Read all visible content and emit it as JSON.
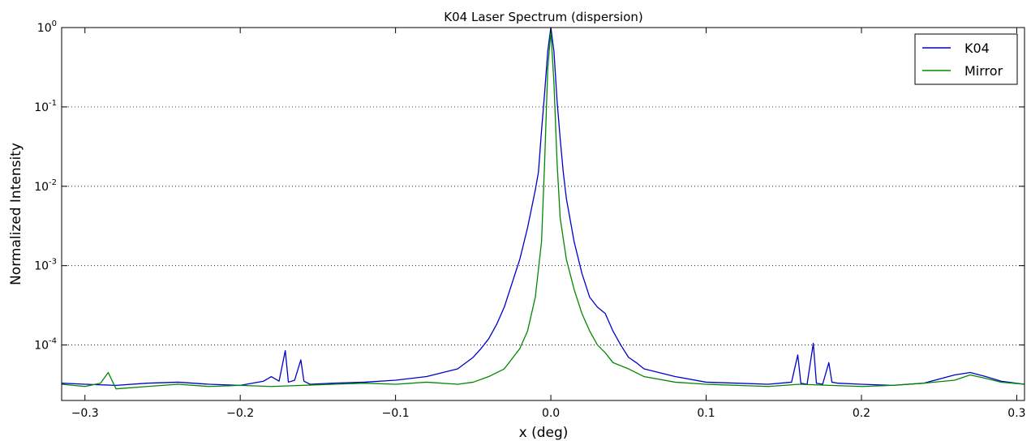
{
  "chart_data": {
    "type": "line",
    "title": "K04 Laser Spectrum (dispersion)",
    "xlabel": "x (deg)",
    "ylabel": "Normalized Intensity",
    "xlim": [
      -0.315,
      0.305
    ],
    "ylim": [
      2e-05,
      1.0
    ],
    "yscale": "log",
    "grid": "horizontal dotted",
    "legend_position": "top-right",
    "xticks": [
      {
        "value": -0.3,
        "label": "−0.3"
      },
      {
        "value": -0.2,
        "label": "−0.2"
      },
      {
        "value": -0.1,
        "label": "−0.1"
      },
      {
        "value": 0.0,
        "label": "0.0"
      },
      {
        "value": 0.1,
        "label": "0.1"
      },
      {
        "value": 0.2,
        "label": "0.2"
      },
      {
        "value": 0.3,
        "label": "0.3"
      }
    ],
    "yticks": [
      {
        "value": 1,
        "base": "10",
        "exp": "0"
      },
      {
        "value": 0.1,
        "base": "10",
        "exp": "-1"
      },
      {
        "value": 0.01,
        "base": "10",
        "exp": "-2"
      },
      {
        "value": 0.001,
        "base": "10",
        "exp": "-3"
      },
      {
        "value": 0.0001,
        "base": "10",
        "exp": "-4"
      }
    ],
    "series": [
      {
        "name": "K04",
        "color": "#0000cc",
        "x": [
          -0.315,
          -0.3,
          -0.28,
          -0.26,
          -0.24,
          -0.22,
          -0.2,
          -0.185,
          -0.18,
          -0.175,
          -0.171,
          -0.169,
          -0.165,
          -0.161,
          -0.159,
          -0.155,
          -0.14,
          -0.12,
          -0.1,
          -0.08,
          -0.06,
          -0.05,
          -0.045,
          -0.04,
          -0.035,
          -0.03,
          -0.025,
          -0.02,
          -0.015,
          -0.01,
          -0.008,
          -0.006,
          -0.004,
          -0.002,
          0.0,
          0.002,
          0.004,
          0.006,
          0.008,
          0.01,
          0.015,
          0.02,
          0.025,
          0.03,
          0.035,
          0.04,
          0.045,
          0.05,
          0.055,
          0.06,
          0.08,
          0.1,
          0.12,
          0.14,
          0.155,
          0.159,
          0.161,
          0.165,
          0.169,
          0.171,
          0.175,
          0.179,
          0.181,
          0.185,
          0.2,
          0.22,
          0.24,
          0.26,
          0.27,
          0.28,
          0.29,
          0.305
        ],
        "y": [
          3.3e-05,
          3.2e-05,
          3.1e-05,
          3.3e-05,
          3.4e-05,
          3.2e-05,
          3.1e-05,
          3.5e-05,
          4e-05,
          3.5e-05,
          8.5e-05,
          3.4e-05,
          3.6e-05,
          6.5e-05,
          3.5e-05,
          3.2e-05,
          3.3e-05,
          3.4e-05,
          3.6e-05,
          4e-05,
          5e-05,
          7e-05,
          9e-05,
          0.00012,
          0.00018,
          0.0003,
          0.0006,
          0.0012,
          0.003,
          0.009,
          0.015,
          0.05,
          0.15,
          0.5,
          1.0,
          0.5,
          0.12,
          0.04,
          0.015,
          0.007,
          0.002,
          0.0008,
          0.0004,
          0.0003,
          0.00025,
          0.00015,
          0.0001,
          7e-05,
          6e-05,
          5e-05,
          4e-05,
          3.4e-05,
          3.3e-05,
          3.2e-05,
          3.4e-05,
          7.5e-05,
          3.3e-05,
          3.2e-05,
          0.000105,
          3.3e-05,
          3.2e-05,
          6e-05,
          3.4e-05,
          3.3e-05,
          3.2e-05,
          3.1e-05,
          3.3e-05,
          4.2e-05,
          4.5e-05,
          4e-05,
          3.5e-05,
          3.2e-05
        ]
      },
      {
        "name": "Mirror",
        "color": "#008800",
        "x": [
          -0.315,
          -0.3,
          -0.29,
          -0.285,
          -0.28,
          -0.26,
          -0.24,
          -0.22,
          -0.2,
          -0.18,
          -0.16,
          -0.14,
          -0.12,
          -0.1,
          -0.08,
          -0.06,
          -0.05,
          -0.04,
          -0.03,
          -0.02,
          -0.015,
          -0.01,
          -0.006,
          -0.004,
          -0.002,
          0.0,
          0.002,
          0.004,
          0.006,
          0.01,
          0.015,
          0.02,
          0.025,
          0.03,
          0.035,
          0.04,
          0.05,
          0.06,
          0.08,
          0.1,
          0.12,
          0.14,
          0.16,
          0.18,
          0.2,
          0.22,
          0.24,
          0.26,
          0.27,
          0.28,
          0.29,
          0.305
        ],
        "y": [
          3.2e-05,
          3e-05,
          3.3e-05,
          4.5e-05,
          2.8e-05,
          3e-05,
          3.2e-05,
          3e-05,
          3.1e-05,
          3e-05,
          3.1e-05,
          3.2e-05,
          3.3e-05,
          3.2e-05,
          3.4e-05,
          3.2e-05,
          3.4e-05,
          4e-05,
          5e-05,
          9e-05,
          0.00015,
          0.0004,
          0.002,
          0.02,
          0.3,
          0.9,
          0.2,
          0.02,
          0.004,
          0.0012,
          0.0005,
          0.00025,
          0.00015,
          0.0001,
          8e-05,
          6e-05,
          5e-05,
          4e-05,
          3.4e-05,
          3.2e-05,
          3.1e-05,
          3e-05,
          3.2e-05,
          3.1e-05,
          3e-05,
          3.1e-05,
          3.3e-05,
          3.6e-05,
          4.2e-05,
          3.8e-05,
          3.4e-05,
          3.2e-05
        ]
      }
    ]
  }
}
